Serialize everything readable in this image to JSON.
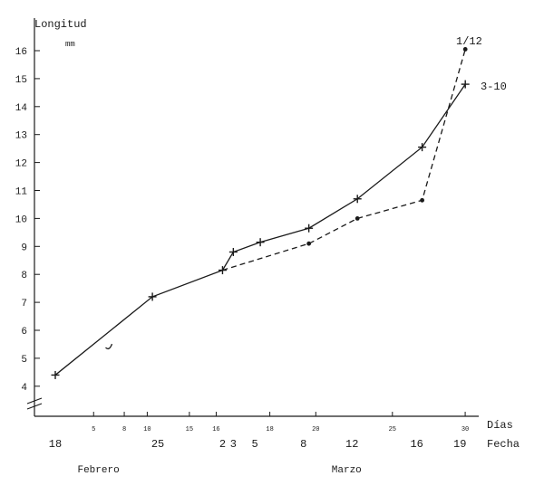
{
  "chart_data": {
    "type": "line",
    "y_title": "Longitud",
    "y_unit": "mm",
    "x_title_days": "Días",
    "x_title_dates": "Fecha",
    "yticks": [
      4,
      5,
      6,
      7,
      8,
      9,
      10,
      11,
      12,
      13,
      14,
      15,
      16
    ],
    "ylim": [
      3.5,
      16.8
    ],
    "xlim": [
      -2,
      40
    ],
    "axis_break": true,
    "grid": false,
    "days_ticks": [
      {
        "x": 5,
        "label": "5"
      },
      {
        "x": 9,
        "label": "8"
      },
      {
        "x": 12,
        "label": "10"
      },
      {
        "x": 17.5,
        "label": "15"
      },
      {
        "x": 21,
        "label": "16"
      },
      {
        "x": 28,
        "label": "18"
      },
      {
        "x": 34,
        "label": "20"
      },
      {
        "x": 44,
        "label": "25"
      },
      {
        "x": 53.5,
        "label": "30"
      }
    ],
    "date_ticks": [
      {
        "x": 0,
        "label": "18"
      },
      {
        "x": 9.5,
        "label": "25"
      },
      {
        "x": 15.5,
        "label": "2"
      },
      {
        "x": 16.5,
        "label": "3"
      },
      {
        "x": 18.5,
        "label": "5"
      },
      {
        "x": 23,
        "label": "8"
      },
      {
        "x": 27.5,
        "label": "12"
      },
      {
        "x": 33.5,
        "label": "16"
      },
      {
        "x": 37.5,
        "label": "19"
      }
    ],
    "months": [
      {
        "x": 4,
        "label": "Febrero"
      },
      {
        "x": 27,
        "label": "Marzo"
      }
    ],
    "series": [
      {
        "name": "3-10",
        "style": "solid-plus",
        "points": [
          {
            "x": 0,
            "y": 4.4
          },
          {
            "x": 9,
            "y": 7.2
          },
          {
            "x": 15.5,
            "y": 8.15
          },
          {
            "x": 16.5,
            "y": 8.8
          },
          {
            "x": 19,
            "y": 9.15
          },
          {
            "x": 23.5,
            "y": 9.65
          },
          {
            "x": 28,
            "y": 10.7
          },
          {
            "x": 34,
            "y": 12.55
          },
          {
            "x": 38,
            "y": 14.8
          }
        ]
      },
      {
        "name": "1/12",
        "style": "dashed-dot",
        "points": [
          {
            "x": 15.5,
            "y": 8.15
          },
          {
            "x": 23.5,
            "y": 9.1
          },
          {
            "x": 28,
            "y": 10.0
          },
          {
            "x": 34,
            "y": 10.65
          },
          {
            "x": 38,
            "y": 16.05
          }
        ]
      }
    ],
    "annotations": [
      {
        "text": "1/12",
        "series": "1/12"
      },
      {
        "text": "3-10",
        "series": "3-10"
      }
    ],
    "stray_mark": {
      "x": 5,
      "y": 5.35
    }
  }
}
